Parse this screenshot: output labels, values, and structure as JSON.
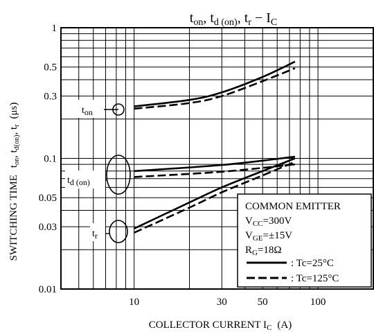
{
  "chart_data": {
    "type": "line",
    "title": "ton, td (on), tr − IC",
    "title_parts": {
      "a": "t",
      "a_sub": "on",
      "sep1": ", ",
      "b": "t",
      "b_sub": "d (on)",
      "sep2": ", ",
      "c": "t",
      "c_sub": "r",
      "dash": " − ",
      "d": "I",
      "d_sub": "C"
    },
    "xlabel": "COLLECTOR CURRENT I",
    "xlabel_sub": "C",
    "xlabel_unit": "(A)",
    "ylabel": "SWITCHING TIME",
    "ylabel_parts": {
      "s1": "t",
      "s1_sub": "on",
      "s2": "t",
      "s2_sub": "d(on)",
      "s3": "t",
      "s3_sub": "r",
      "unit": "(μs)"
    },
    "x_scale": "log",
    "y_scale": "log",
    "xlim": [
      4,
      200
    ],
    "ylim": [
      0.01,
      1
    ],
    "x_ticks": [
      10,
      30,
      50,
      100
    ],
    "x_tick_labels": [
      "10",
      "30",
      "50",
      "100"
    ],
    "y_ticks": [
      0.01,
      0.03,
      0.05,
      0.1,
      0.3,
      0.5,
      1
    ],
    "y_tick_labels": [
      "0.01",
      "0.03",
      "0.05",
      "0.1",
      "0.3",
      "0.5",
      "1"
    ],
    "grid": true,
    "series": [
      {
        "group": "ton",
        "condition": "Tc=25°C",
        "style": "solid",
        "x": [
          10,
          20,
          30,
          50,
          75
        ],
        "y": [
          0.25,
          0.28,
          0.32,
          0.42,
          0.55
        ]
      },
      {
        "group": "ton",
        "condition": "Tc=125°C",
        "style": "dashed",
        "x": [
          10,
          20,
          30,
          50,
          75
        ],
        "y": [
          0.24,
          0.265,
          0.3,
          0.39,
          0.49
        ]
      },
      {
        "group": "td(on)",
        "condition": "Tc=25°C",
        "style": "solid",
        "x": [
          10,
          30,
          75
        ],
        "y": [
          0.08,
          0.089,
          0.103
        ]
      },
      {
        "group": "td(on)",
        "condition": "Tc=125°C",
        "style": "dashed",
        "x": [
          10,
          30,
          75
        ],
        "y": [
          0.072,
          0.079,
          0.09
        ]
      },
      {
        "group": "tr",
        "condition": "Tc=25°C",
        "style": "solid",
        "x": [
          10,
          20,
          30,
          50,
          75
        ],
        "y": [
          0.029,
          0.046,
          0.06,
          0.08,
          0.1
        ]
      },
      {
        "group": "tr",
        "condition": "Tc=125°C",
        "style": "dashed",
        "x": [
          10,
          20,
          30,
          50,
          75
        ],
        "y": [
          0.027,
          0.042,
          0.055,
          0.074,
          0.094
        ]
      }
    ],
    "curve_labels": [
      {
        "text": "t",
        "sub": "on"
      },
      {
        "text": "t",
        "sub": "d (on)"
      },
      {
        "text": "t",
        "sub": "r"
      }
    ],
    "legend": {
      "placement": "bottom-right",
      "lines": [
        {
          "text": "COMMON EMITTER"
        },
        {
          "text": "V",
          "sub": "CC",
          "rest": "=300V"
        },
        {
          "text": "V",
          "sub": "GE",
          "rest": "=±15V"
        },
        {
          "text": "R",
          "sub": "G",
          "rest": "=18Ω"
        }
      ],
      "entries": [
        {
          "style": "solid",
          "label": ": Tc=25°C"
        },
        {
          "style": "dashed",
          "label": ": Tc=125°C"
        }
      ]
    }
  }
}
